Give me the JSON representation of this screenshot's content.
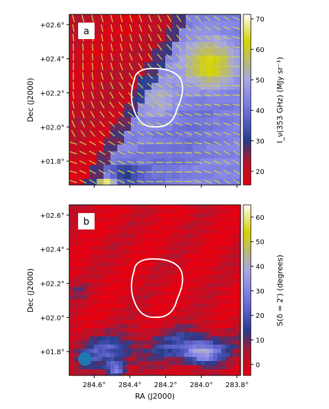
{
  "chart_data": [
    {
      "type": "heatmap",
      "panel_label": "a",
      "ylabel": "Dec (J2000)",
      "yticks": [
        "+01.8°",
        "+02.0°",
        "+02.2°",
        "+02.4°",
        "+02.6°"
      ],
      "ytick_values": [
        1.8,
        2.0,
        2.2,
        2.4,
        2.6
      ],
      "ylim": [
        1.66,
        2.66
      ],
      "xlim": [
        284.74,
        283.78
      ],
      "colorbar": {
        "label": "I_ν(353 GHz) (MJy sr⁻¹)",
        "ticks": [
          "20",
          "30",
          "40",
          "50",
          "60",
          "70"
        ],
        "tick_values": [
          20,
          30,
          40,
          50,
          60,
          70
        ],
        "range": [
          15.5,
          71.5
        ]
      },
      "overlays": [
        "polarization-segments",
        "region-contour"
      ],
      "colors": {
        "low": "#cc0020",
        "mid": "#7f7fe6",
        "high": "#d6d400",
        "segment": "#cdd34a"
      }
    },
    {
      "type": "heatmap",
      "panel_label": "b",
      "xlabel": "RA (J2000)",
      "ylabel": "Dec (J2000)",
      "xticks": [
        "284.6°",
        "284.4°",
        "284.2°",
        "284.0°",
        "283.8°"
      ],
      "xtick_values": [
        284.6,
        284.4,
        284.2,
        284.0,
        283.8
      ],
      "yticks": [
        "+01.8°",
        "+02.0°",
        "+02.2°",
        "+02.4°",
        "+02.6°"
      ],
      "ytick_values": [
        1.8,
        2.0,
        2.2,
        2.4,
        2.6
      ],
      "ylim": [
        1.66,
        2.66
      ],
      "xlim": [
        284.74,
        283.78
      ],
      "colorbar": {
        "label": "S(δ = 2′) (degrees)",
        "ticks": [
          "0",
          "10",
          "20",
          "30",
          "40",
          "50",
          "60"
        ],
        "tick_values": [
          0,
          10,
          20,
          30,
          40,
          50,
          60
        ],
        "range": [
          -4.5,
          65
        ]
      },
      "overlays": [
        "region-contour",
        "beam-marker"
      ],
      "colors": {
        "low": "#cc0020",
        "mid": "#7f7fe6",
        "high": "#d6d400",
        "beam": "#1f77b4"
      }
    }
  ]
}
